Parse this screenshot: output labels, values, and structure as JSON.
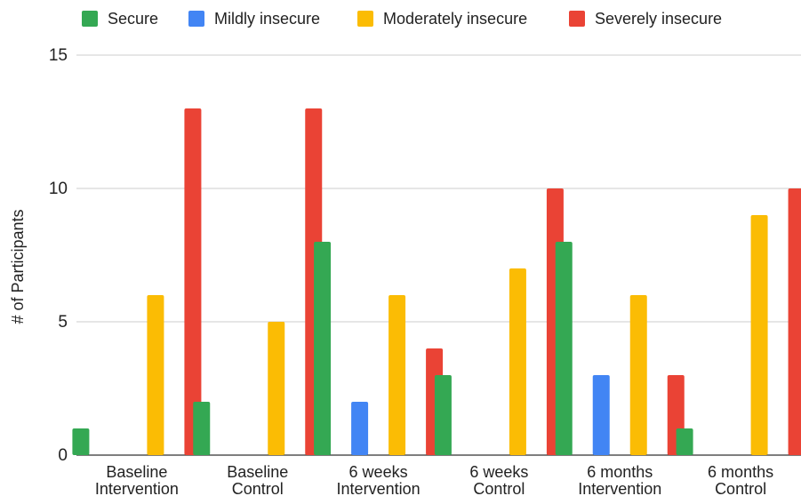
{
  "chart_data": {
    "type": "bar",
    "title": "",
    "xlabel": "",
    "ylabel": "# of Participants",
    "ylim": [
      0,
      15
    ],
    "yticks": [
      0,
      5,
      10,
      15
    ],
    "grid": true,
    "legend_position": "top",
    "categories": [
      [
        "Baseline",
        "Intervention"
      ],
      [
        "Baseline",
        "Control"
      ],
      [
        "6 weeks",
        "Intervention"
      ],
      [
        "6 weeks",
        "Control"
      ],
      [
        "6 months",
        "Intervention"
      ],
      [
        "6 months",
        "Control"
      ]
    ],
    "series": [
      {
        "name": "Secure",
        "color": "#34a853",
        "values": [
          1,
          2,
          8,
          3,
          8,
          1
        ]
      },
      {
        "name": "Mildly insecure",
        "color": "#4285f4",
        "values": [
          0,
          0,
          2,
          0,
          3,
          0
        ]
      },
      {
        "name": "Moderately insecure",
        "color": "#fbbc04",
        "values": [
          6,
          5,
          6,
          7,
          6,
          9
        ]
      },
      {
        "name": "Severely insecure",
        "color": "#ea4335",
        "values": [
          13,
          13,
          4,
          10,
          3,
          10
        ]
      }
    ]
  }
}
